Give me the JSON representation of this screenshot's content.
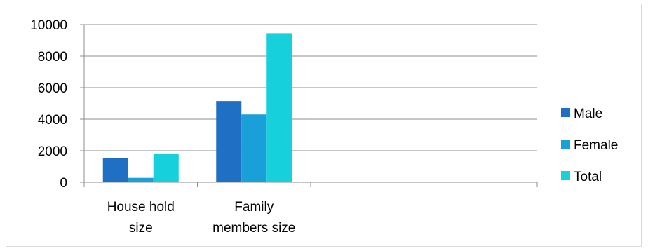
{
  "chart_data": {
    "type": "bar",
    "categories": [
      [
        "House hold",
        "size"
      ],
      [
        "Family",
        "members size"
      ],
      [
        "",
        ""
      ],
      [
        "",
        ""
      ]
    ],
    "series": [
      {
        "name": "Male",
        "values": [
          1550,
          5150,
          null,
          null
        ],
        "color": "#1f6fc5"
      },
      {
        "name": "Female",
        "values": [
          280,
          4300,
          null,
          null
        ],
        "color": "#1aa0d8"
      },
      {
        "name": "Total",
        "values": [
          1800,
          9450,
          null,
          null
        ],
        "color": "#16d0dc"
      }
    ],
    "ylim": [
      0,
      10000
    ],
    "yticks": [
      0,
      2000,
      4000,
      6000,
      8000,
      10000
    ],
    "grid": true,
    "legend": "right"
  }
}
